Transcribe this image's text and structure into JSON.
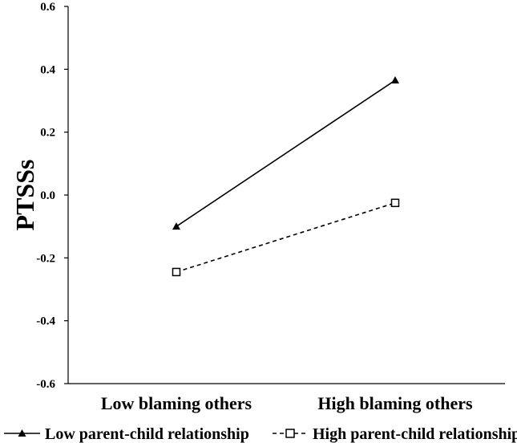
{
  "chart_data": {
    "type": "line",
    "title": "",
    "xlabel": "",
    "ylabel": "PTSSs",
    "categories": [
      "Low blaming others",
      "High blaming others"
    ],
    "ylim": [
      -0.6,
      0.6
    ],
    "yticks": [
      "0.6",
      "0.4",
      "0.2",
      "0.0",
      "-0.2",
      "-0.4",
      "-0.6"
    ],
    "ytick_values": [
      0.6,
      0.4,
      0.2,
      0.0,
      -0.2,
      -0.4,
      -0.6
    ],
    "grid": false,
    "legend_position": "bottom",
    "series": [
      {
        "name": "Low parent-child relationship",
        "values": [
          -0.1,
          0.365
        ],
        "marker": "triangle-filled",
        "line_style": "solid",
        "color": "#000000"
      },
      {
        "name": "High parent-child relationship",
        "values": [
          -0.245,
          -0.025
        ],
        "marker": "square-open",
        "line_style": "dashed",
        "color": "#000000"
      }
    ]
  }
}
